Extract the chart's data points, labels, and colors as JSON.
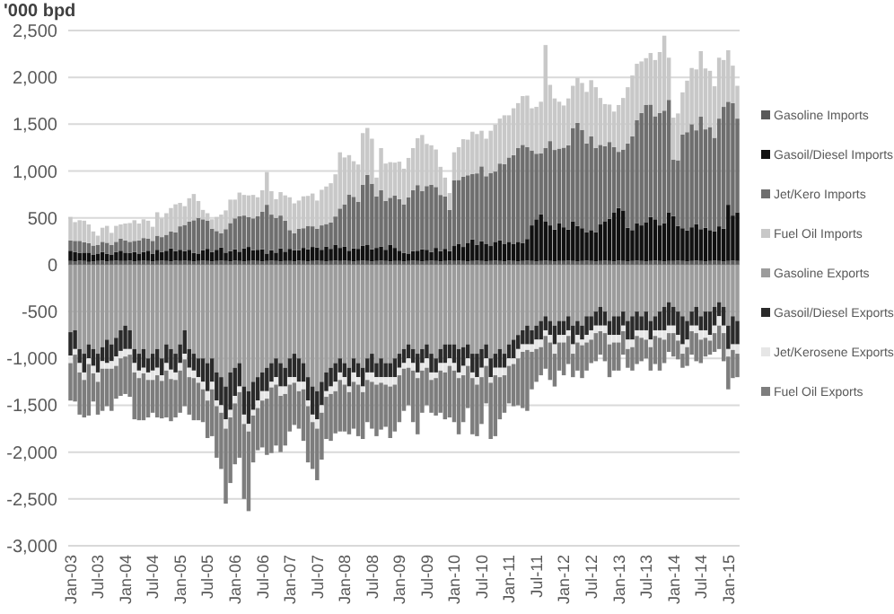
{
  "chart_data": {
    "type": "bar",
    "stacked": true,
    "ylabel": "'000 bpd",
    "grid": "y",
    "legend": "right",
    "ylim": [
      -3000,
      2500
    ],
    "yticks": [
      {
        "value": -3000,
        "label": "-3,000"
      },
      {
        "value": -2500,
        "label": "-2,500"
      },
      {
        "value": -2000,
        "label": "-2,000"
      },
      {
        "value": -1500,
        "label": "-1,500"
      },
      {
        "value": -1000,
        "label": "-1,000"
      },
      -500,
      0,
      500,
      {
        "value": 1000,
        "label": "1,000"
      },
      {
        "value": 1500,
        "label": "1,500"
      },
      {
        "value": 2000,
        "label": "2,000"
      },
      {
        "value": 2500,
        "label": "2,500"
      }
    ],
    "categories": [
      "Jan-03",
      null,
      null,
      null,
      null,
      null,
      "Jul-03",
      null,
      null,
      null,
      null,
      null,
      "Jan-04",
      null,
      null,
      null,
      null,
      null,
      "Jul-04",
      null,
      null,
      null,
      null,
      null,
      "Jan-05",
      null,
      null,
      null,
      null,
      null,
      "Jul-05",
      null,
      null,
      null,
      null,
      null,
      "Jan-06",
      null,
      null,
      null,
      null,
      null,
      "Jul-06",
      null,
      null,
      null,
      null,
      null,
      "Jan-07",
      null,
      null,
      null,
      null,
      null,
      "Jul-07",
      null,
      null,
      null,
      null,
      null,
      "Jan-08",
      null,
      null,
      null,
      null,
      null,
      "Jul-08",
      null,
      null,
      null,
      null,
      null,
      "Jan-09",
      null,
      null,
      null,
      null,
      null,
      "Jul-09",
      null,
      null,
      null,
      null,
      null,
      "Jan-10",
      null,
      null,
      null,
      null,
      null,
      "Jul-10",
      null,
      null,
      null,
      null,
      null,
      "Jan-11",
      null,
      null,
      null,
      null,
      null,
      "Jul-11",
      null,
      null,
      null,
      null,
      null,
      "Jan-12",
      null,
      null,
      null,
      null,
      null,
      "Jul-12",
      null,
      null,
      null,
      null,
      null,
      "Jan-13",
      null,
      null,
      null,
      null,
      null,
      "Jul-13",
      null,
      null,
      null,
      null,
      null,
      "Jan-14",
      null,
      null,
      null,
      null,
      null,
      "Jul-14",
      null,
      null,
      null,
      null,
      null,
      "Jan-15",
      null,
      null
    ],
    "series": [
      {
        "name": "Gasoline Imports",
        "color": "#5a5a5a",
        "values": [
          40,
          35,
          45,
          40,
          30,
          35,
          40,
          45,
          35,
          40,
          45,
          40,
          40,
          45,
          35,
          40,
          45,
          40,
          35,
          40,
          45,
          40,
          35,
          45,
          40,
          45,
          40,
          35,
          40,
          45,
          40,
          35,
          40,
          45,
          40,
          35,
          45,
          40,
          35,
          40,
          45,
          40,
          35,
          40,
          45,
          40,
          35,
          40,
          40,
          35,
          45,
          40,
          35,
          40,
          45,
          40,
          35,
          40,
          45,
          40,
          45,
          40,
          35,
          40,
          45,
          40,
          35,
          40,
          45,
          40,
          35,
          40,
          40,
          35,
          40,
          45,
          40,
          35,
          40,
          45,
          40,
          35,
          40,
          45,
          40,
          45,
          40,
          35,
          40,
          45,
          40,
          35,
          40,
          45,
          40,
          35,
          45,
          40,
          35,
          40,
          45,
          40,
          35,
          40,
          45,
          40,
          35,
          40,
          40,
          45,
          40,
          35,
          40,
          45,
          40,
          35,
          40,
          45,
          40,
          35,
          45,
          40,
          35,
          40,
          45,
          40,
          35,
          40,
          45,
          40,
          35,
          40,
          40,
          45,
          40,
          35,
          40,
          45,
          40,
          35,
          40,
          45,
          40,
          35,
          40,
          45,
          40
        ]
      },
      {
        "name": "Gasoil/Diesel Imports",
        "color": "#111111",
        "values": [
          110,
          100,
          80,
          90,
          100,
          70,
          80,
          90,
          80,
          70,
          90,
          110,
          90,
          80,
          100,
          80,
          90,
          110,
          80,
          120,
          90,
          110,
          140,
          100,
          120,
          100,
          120,
          90,
          80,
          110,
          130,
          100,
          120,
          140,
          90,
          110,
          120,
          100,
          140,
          150,
          110,
          120,
          130,
          80,
          110,
          90,
          140,
          100,
          130,
          120,
          110,
          140,
          130,
          150,
          140,
          120,
          160,
          130,
          170,
          140,
          150,
          110,
          140,
          130,
          160,
          170,
          130,
          140,
          150,
          120,
          180,
          140,
          110,
          90,
          80,
          100,
          110,
          130,
          120,
          90,
          140,
          110,
          130,
          100,
          160,
          180,
          150,
          200,
          230,
          170,
          210,
          190,
          160,
          200,
          220,
          190,
          200,
          180,
          210,
          190,
          230,
          380,
          450,
          500,
          420,
          380,
          340,
          400,
          360,
          330,
          420,
          380,
          350,
          300,
          330,
          310,
          390,
          420,
          450,
          520,
          560,
          540,
          360,
          330,
          400,
          380,
          420,
          470,
          440,
          380,
          410,
          520,
          480,
          370,
          350,
          330,
          360,
          390,
          340,
          360,
          330,
          310,
          370,
          350,
          600,
          480,
          520
        ]
      },
      {
        "name": "Jet/Kero Imports",
        "color": "#6e6e6e",
        "values": [
          110,
          120,
          130,
          110,
          100,
          100,
          90,
          110,
          120,
          100,
          110,
          130,
          130,
          120,
          120,
          140,
          150,
          130,
          140,
          150,
          160,
          170,
          180,
          200,
          250,
          280,
          300,
          350,
          380,
          330,
          300,
          250,
          200,
          150,
          250,
          300,
          330,
          380,
          350,
          320,
          340,
          360,
          400,
          520,
          380,
          370,
          350,
          330,
          200,
          180,
          230,
          210,
          250,
          220,
          200,
          260,
          240,
          280,
          300,
          420,
          450,
          600,
          550,
          500,
          650,
          750,
          700,
          550,
          600,
          520,
          500,
          560,
          550,
          520,
          600,
          650,
          700,
          620,
          680,
          720,
          650,
          600,
          560,
          440,
          700,
          680,
          750,
          720,
          700,
          760,
          800,
          720,
          780,
          750,
          820,
          850,
          900,
          950,
          1000,
          1050,
          980,
          800,
          700,
          650,
          780,
          900,
          850,
          800,
          850,
          900,
          1000,
          1100,
          1050,
          950,
          1000,
          900,
          850,
          800,
          820,
          700,
          600,
          650,
          900,
          1000,
          1100,
          1200,
          1250,
          1200,
          1100,
          1200,
          1200,
          1200,
          600,
          700,
          1000,
          1050,
          1100,
          1000,
          1200,
          1050,
          1100,
          1000,
          1150,
          1300,
          1100,
          1200,
          1000
        ]
      },
      {
        "name": "Fuel Oil Imports",
        "color": "#c8c8c8",
        "values": [
          250,
          200,
          220,
          230,
          200,
          150,
          100,
          150,
          180,
          130,
          170,
          150,
          180,
          200,
          220,
          180,
          200,
          190,
          150,
          250,
          200,
          230,
          250,
          300,
          250,
          200,
          250,
          280,
          180,
          100,
          80,
          100,
          150,
          200,
          200,
          250,
          200,
          250,
          220,
          230,
          250,
          200,
          230,
          350,
          250,
          200,
          250,
          270,
          350,
          320,
          300,
          340,
          320,
          350,
          300,
          380,
          400,
          420,
          450,
          600,
          500,
          420,
          380,
          400,
          550,
          500,
          480,
          200,
          450,
          400,
          380,
          350,
          400,
          380,
          420,
          450,
          500,
          600,
          450,
          420,
          400,
          300,
          200,
          180,
          300,
          350,
          400,
          380,
          450,
          420,
          380,
          400,
          450,
          500,
          480,
          520,
          450,
          500,
          480,
          520,
          550,
          450,
          500,
          550,
          1100,
          600,
          550,
          500,
          450,
          500,
          450,
          480,
          500,
          550,
          600,
          650,
          500,
          450,
          400,
          380,
          500,
          550,
          600,
          650,
          600,
          550,
          500,
          550,
          600,
          650,
          800,
          450,
          450,
          500,
          450,
          550,
          600,
          650,
          700,
          650,
          600,
          550,
          650,
          500,
          550,
          400,
          350
        ]
      },
      {
        "name": "Gasoline Exports",
        "color": "#9c9c9c",
        "values": [
          -720,
          -700,
          -900,
          -950,
          -850,
          -900,
          -950,
          -880,
          -800,
          -850,
          -780,
          -700,
          -650,
          -700,
          -900,
          -950,
          -900,
          -1000,
          -950,
          -900,
          -1000,
          -850,
          -900,
          -950,
          -850,
          -700,
          -900,
          -950,
          -1000,
          -1000,
          -1050,
          -1000,
          -1150,
          -1200,
          -1300,
          -1150,
          -1100,
          -1050,
          -1300,
          -1350,
          -1250,
          -1200,
          -1150,
          -1100,
          -1050,
          -1000,
          -1050,
          -1100,
          -1000,
          -950,
          -1000,
          -1050,
          -1200,
          -1300,
          -1350,
          -1250,
          -1150,
          -1100,
          -1050,
          -1000,
          -1050,
          -1100,
          -1000,
          -1050,
          -1100,
          -1000,
          -950,
          -1050,
          -1000,
          -1050,
          -1050,
          -1000,
          -950,
          -900,
          -850,
          -900,
          -950,
          -900,
          -850,
          -950,
          -1000,
          -900,
          -850,
          -850,
          -850,
          -900,
          -880,
          -850,
          -950,
          -950,
          -900,
          -850,
          -1000,
          -950,
          -900,
          -950,
          -850,
          -800,
          -750,
          -700,
          -650,
          -700,
          -650,
          -600,
          -550,
          -600,
          -650,
          -600,
          -600,
          -550,
          -650,
          -600,
          -650,
          -550,
          -550,
          -500,
          -450,
          -500,
          -600,
          -550,
          -550,
          -500,
          -600,
          -550,
          -500,
          -550,
          -500,
          -600,
          -550,
          -500,
          -450,
          -400,
          -450,
          -500,
          -550,
          -600,
          -500,
          -450,
          -550,
          -500,
          -500,
          -450,
          -400,
          -450,
          -650,
          -550,
          -600
        ]
      },
      {
        "name": "Gasoil/Diesel Exports",
        "color": "#2a2a2a",
        "values": [
          -250,
          -200,
          -150,
          -200,
          -150,
          -180,
          -200,
          -150,
          -250,
          -180,
          -200,
          -220,
          -250,
          -200,
          -150,
          -180,
          -200,
          -150,
          -180,
          -200,
          -180,
          -200,
          -220,
          -200,
          -200,
          -250,
          -200,
          -180,
          -200,
          -250,
          -300,
          -250,
          -300,
          -300,
          -350,
          -400,
          -300,
          -250,
          -300,
          -350,
          -300,
          -250,
          -200,
          -250,
          -200,
          -200,
          -250,
          -200,
          -200,
          -250,
          -250,
          -200,
          -250,
          -300,
          -300,
          -250,
          -200,
          -200,
          -200,
          -150,
          -150,
          -200,
          -150,
          -150,
          -200,
          -150,
          -200,
          -150,
          -200,
          -150,
          -150,
          -200,
          -150,
          -150,
          -150,
          -150,
          -200,
          -150,
          -150,
          -200,
          -150,
          -150,
          -200,
          -150,
          -200,
          -250,
          -200,
          -150,
          -200,
          -250,
          -200,
          -150,
          -200,
          -150,
          -200,
          -150,
          -150,
          -200,
          -150,
          -150,
          -200,
          -150,
          -150,
          -200,
          -150,
          -150,
          -200,
          -150,
          -150,
          -150,
          -200,
          -150,
          -150,
          -200,
          -150,
          -150,
          -200,
          -150,
          -150,
          -200,
          -200,
          -150,
          -200,
          -250,
          -200,
          -150,
          -200,
          -200,
          -150,
          -200,
          -250,
          -250,
          -200,
          -250,
          -300,
          -200,
          -150,
          -200,
          -150,
          -200,
          -250,
          -200,
          -150,
          -200,
          -250,
          -300,
          -250
        ]
      },
      {
        "name": "Jet/Kerosene Exports",
        "color": "#e6e6e6",
        "values": [
          -80,
          -60,
          -100,
          -80,
          -60,
          -80,
          -100,
          -80,
          -60,
          -80,
          -100,
          -80,
          -80,
          -60,
          -100,
          -80,
          -60,
          -80,
          -100,
          -80,
          -60,
          -80,
          -100,
          -80,
          -80,
          -60,
          -100,
          -80,
          -60,
          -80,
          -100,
          -80,
          -60,
          -80,
          -100,
          -80,
          -80,
          -60,
          -100,
          -80,
          -60,
          -80,
          -100,
          -80,
          -60,
          -80,
          -100,
          -80,
          -80,
          -60,
          -100,
          -80,
          -60,
          -80,
          -100,
          -80,
          -60,
          -80,
          -100,
          -80,
          -80,
          -60,
          -100,
          -80,
          -60,
          -80,
          -100,
          -80,
          -60,
          -80,
          -100,
          -80,
          -80,
          -60,
          -100,
          -80,
          -60,
          -80,
          -100,
          -80,
          -60,
          -80,
          -100,
          -80,
          -80,
          -60,
          -100,
          -80,
          -60,
          -80,
          -100,
          -80,
          -60,
          -80,
          -100,
          -80,
          -80,
          -60,
          -100,
          -80,
          -60,
          -80,
          -100,
          -80,
          -60,
          -80,
          -100,
          -80,
          -80,
          -60,
          -100,
          -80,
          -60,
          -80,
          -100,
          -80,
          -60,
          -80,
          -100,
          -80,
          -80,
          -60,
          -100,
          -80,
          -60,
          -80,
          -100,
          -80,
          -60,
          -80,
          -100,
          -80,
          -80,
          -60,
          -100,
          -80,
          -60,
          -80,
          -100,
          -80,
          -60,
          -80,
          -100,
          -80,
          -80,
          -60,
          -100
        ]
      },
      {
        "name": "Fuel Oil Exports",
        "color": "#7d7d7d",
        "values": [
          -400,
          -500,
          -450,
          -400,
          -550,
          -300,
          -350,
          -450,
          -400,
          -450,
          -350,
          -400,
          -400,
          -450,
          -500,
          -450,
          -500,
          -400,
          -350,
          -450,
          -400,
          -500,
          -450,
          -400,
          -450,
          -500,
          -400,
          -450,
          -400,
          -350,
          -400,
          -500,
          -550,
          -600,
          -800,
          -700,
          -650,
          -700,
          -800,
          -850,
          -500,
          -450,
          -500,
          -600,
          -700,
          -650,
          -600,
          -550,
          -500,
          -450,
          -400,
          -550,
          -600,
          -500,
          -550,
          -500,
          -450,
          -500,
          -450,
          -550,
          -500,
          -450,
          -500,
          -550,
          -500,
          -450,
          -500,
          -550,
          -500,
          -450,
          -550,
          -500,
          -500,
          -450,
          -400,
          -550,
          -600,
          -450,
          -400,
          -350,
          -400,
          -450,
          -500,
          -550,
          -550,
          -600,
          -500,
          -450,
          -600,
          -550,
          -500,
          -400,
          -600,
          -650,
          -450,
          -400,
          -400,
          -450,
          -500,
          -600,
          -650,
          -400,
          -350,
          -300,
          -350,
          -400,
          -350,
          -300,
          -350,
          -300,
          -250,
          -300,
          -350,
          -300,
          -250,
          -300,
          -250,
          -300,
          -350,
          -300,
          -300,
          -250,
          -200,
          -250,
          -300,
          -250,
          -200,
          -250,
          -300,
          -350,
          -250,
          -200,
          -250,
          -200,
          -150,
          -200,
          -250,
          -300,
          -250,
          -200,
          -150,
          -200,
          -250,
          -300,
          -350,
          -300,
          -250
        ]
      }
    ]
  }
}
